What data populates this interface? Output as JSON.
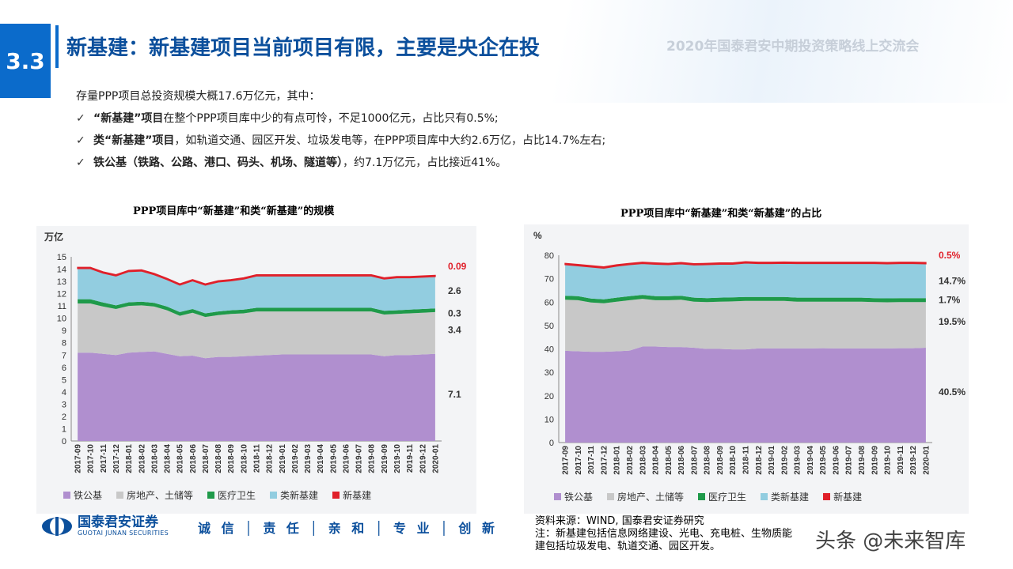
{
  "header": {
    "section_number": "3.3",
    "title": "新基建：新基建项目当前项目有限，主要是央企在投",
    "conference": "2020年国泰君安中期投资策略线上交流会"
  },
  "bullets": {
    "intro": "存量PPP项目总投资规模大概17.6万亿元，其中：",
    "items": [
      {
        "check": "✓",
        "bold": "“新基建”项目",
        "text": "在整个PPP项目库中少的有点可怜，不足1000亿元，占比只有0.5%;"
      },
      {
        "check": "✓",
        "bold": "类“新基建”项目",
        "text": "，如轨道交通、园区开发、垃圾发电等，在PPP项目库中大约2.6万亿，占比14.7%左右;"
      },
      {
        "check": "✓",
        "bold": "铁公基（铁路、公路、港口、码头、机场、隧道等）",
        "text": "，约7.1万亿元，占比接近41%。"
      }
    ]
  },
  "footer": {
    "logo_cn": "国泰君安证券",
    "logo_en": "GUOTAI JUNAN SECURITIES",
    "slogan": "诚 信 │ 责 任 │ 亲 和 │ 专 业 │ 创 新",
    "source_line1": "资料来源：WIND, 国泰君安证券研究",
    "source_line2": "注：新基建包括信息网络建设、光电、充电桩、生物质能",
    "source_line3": "建包括垃圾发电、轨道交通、园区开发。",
    "watermark": "头条 @未来智库"
  },
  "colors": {
    "tiegongji": "#b08fcf",
    "fangdichan": "#c8c8c8",
    "yiliao": "#1f9a4a",
    "leixinjijian": "#92cde0",
    "xinjijian": "#e0202a",
    "brand": "#0b6bcb"
  },
  "chart_data": [
    {
      "type": "area",
      "stacked": true,
      "title": "PPP项目库中“新基建”和类“新基建”的规模",
      "ylabel": "万亿",
      "ylim": [
        0,
        15
      ],
      "yticks": [
        0,
        1,
        2,
        3,
        4,
        5,
        6,
        7,
        8,
        9,
        10,
        11,
        12,
        13,
        14,
        15
      ],
      "categories": [
        "2017-09",
        "2017-10",
        "2017-11",
        "2017-12",
        "2018-01",
        "2018-02",
        "2018-03",
        "2018-04",
        "2018-05",
        "2018-06",
        "2018-07",
        "2018-08",
        "2018-09",
        "2018-10",
        "2018-11",
        "2018-12",
        "2019-01",
        "2019-02",
        "2019-03",
        "2019-04",
        "2019-05",
        "2019-06",
        "2019-07",
        "2019-08",
        "2019-09",
        "2019-10",
        "2019-11",
        "2019-12",
        "2020-01"
      ],
      "series": [
        {
          "name": "铁公基",
          "values": [
            7.2,
            7.2,
            7.1,
            7.0,
            7.2,
            7.25,
            7.3,
            7.1,
            6.9,
            6.95,
            6.75,
            6.85,
            6.85,
            6.9,
            6.95,
            7.0,
            7.05,
            7.05,
            7.05,
            7.05,
            7.05,
            7.05,
            7.05,
            7.05,
            6.9,
            7.0,
            7.0,
            7.05,
            7.1
          ]
        },
        {
          "name": "房地产、土储等",
          "values": [
            4.0,
            4.0,
            3.85,
            3.75,
            3.8,
            3.8,
            3.65,
            3.55,
            3.3,
            3.5,
            3.35,
            3.4,
            3.5,
            3.5,
            3.6,
            3.55,
            3.5,
            3.5,
            3.5,
            3.5,
            3.5,
            3.5,
            3.5,
            3.5,
            3.4,
            3.35,
            3.4,
            3.4,
            3.4
          ]
        },
        {
          "name": "医疗卫生",
          "values": [
            0.35,
            0.35,
            0.33,
            0.3,
            0.3,
            0.3,
            0.3,
            0.3,
            0.3,
            0.3,
            0.3,
            0.3,
            0.3,
            0.3,
            0.3,
            0.3,
            0.3,
            0.3,
            0.3,
            0.3,
            0.3,
            0.3,
            0.3,
            0.3,
            0.3,
            0.3,
            0.3,
            0.3,
            0.3
          ]
        },
        {
          "name": "类新基建",
          "values": [
            2.5,
            2.5,
            2.4,
            2.4,
            2.5,
            2.5,
            2.3,
            2.2,
            2.2,
            2.3,
            2.3,
            2.4,
            2.4,
            2.5,
            2.6,
            2.6,
            2.6,
            2.6,
            2.6,
            2.6,
            2.6,
            2.6,
            2.6,
            2.6,
            2.6,
            2.65,
            2.6,
            2.6,
            2.6
          ]
        },
        {
          "name": "新基建",
          "values": [
            0.09,
            0.09,
            0.09,
            0.09,
            0.09,
            0.09,
            0.09,
            0.09,
            0.09,
            0.09,
            0.09,
            0.09,
            0.09,
            0.09,
            0.09,
            0.09,
            0.09,
            0.09,
            0.09,
            0.09,
            0.09,
            0.09,
            0.09,
            0.09,
            0.09,
            0.09,
            0.09,
            0.09,
            0.09
          ]
        }
      ],
      "end_labels": [
        "0.09",
        "2.6",
        "0.3",
        "3.4",
        "7.1"
      ],
      "legend": [
        "铁公基",
        "房地产、土储等",
        "医疗卫生",
        "类新基建",
        "新基建"
      ],
      "legend_position": "bottom"
    },
    {
      "type": "area",
      "stacked": true,
      "title": "PPP项目库中“新基建”和类“新基建”的占比",
      "ylabel": "%",
      "ylim": [
        0,
        80
      ],
      "yticks": [
        0,
        10,
        20,
        30,
        40,
        50,
        60,
        70,
        80
      ],
      "categories": [
        "2017-09",
        "2017-10",
        "2017-11",
        "2017-12",
        "2018-01",
        "2018-02",
        "2018-03",
        "2018-04",
        "2018-05",
        "2018-06",
        "2018-07",
        "2018-08",
        "2018-09",
        "2018-10",
        "2018-11",
        "2018-12",
        "2019-01",
        "2019-02",
        "2019-03",
        "2019-04",
        "2019-05",
        "2019-06",
        "2019-07",
        "2019-08",
        "2019-09",
        "2019-10",
        "2019-11",
        "2019-12",
        "2020-01"
      ],
      "series": [
        {
          "name": "铁公基",
          "values": [
            39.2,
            39.0,
            38.8,
            38.8,
            39.0,
            39.3,
            41.0,
            41.0,
            40.8,
            40.8,
            40.5,
            40.0,
            40.0,
            39.8,
            39.8,
            40.2,
            40.2,
            40.2,
            40.2,
            40.2,
            40.3,
            40.2,
            40.2,
            40.2,
            40.2,
            40.2,
            40.3,
            40.3,
            40.5
          ]
        },
        {
          "name": "房地产、土储等",
          "values": [
            21.8,
            21.8,
            21.0,
            20.7,
            21.2,
            21.5,
            20.4,
            19.8,
            20.0,
            20.2,
            19.7,
            20.0,
            20.2,
            20.5,
            20.7,
            20.3,
            20.3,
            20.3,
            20.0,
            20.0,
            19.9,
            20.0,
            20.0,
            20.0,
            19.8,
            19.7,
            19.7,
            19.7,
            19.5
          ]
        },
        {
          "name": "医疗卫生",
          "values": [
            1.7,
            1.7,
            1.7,
            1.7,
            1.7,
            1.7,
            1.7,
            1.7,
            1.7,
            1.7,
            1.7,
            1.7,
            1.7,
            1.7,
            1.7,
            1.7,
            1.7,
            1.7,
            1.7,
            1.7,
            1.7,
            1.7,
            1.7,
            1.7,
            1.7,
            1.7,
            1.7,
            1.7,
            1.7
          ]
        },
        {
          "name": "类新基建",
          "values": [
            13.3,
            13.0,
            13.5,
            13.3,
            13.5,
            13.5,
            13.4,
            13.7,
            13.5,
            13.7,
            14.0,
            14.3,
            14.3,
            14.2,
            14.5,
            14.3,
            14.3,
            14.4,
            14.6,
            14.6,
            14.6,
            14.6,
            14.6,
            14.6,
            14.8,
            14.8,
            14.8,
            14.8,
            14.7
          ]
        },
        {
          "name": "新基建",
          "values": [
            0.5,
            0.5,
            0.5,
            0.5,
            0.5,
            0.5,
            0.5,
            0.5,
            0.5,
            0.5,
            0.5,
            0.5,
            0.5,
            0.5,
            0.5,
            0.5,
            0.5,
            0.5,
            0.5,
            0.5,
            0.5,
            0.5,
            0.5,
            0.5,
            0.5,
            0.5,
            0.5,
            0.5,
            0.5
          ]
        }
      ],
      "end_labels": [
        "0.5%",
        "14.7%",
        "1.7%",
        "19.5%",
        "40.5%"
      ],
      "legend": [
        "铁公基",
        "房地产、土储等",
        "医疗卫生",
        "类新基建",
        "新基建"
      ],
      "legend_position": "bottom"
    }
  ]
}
